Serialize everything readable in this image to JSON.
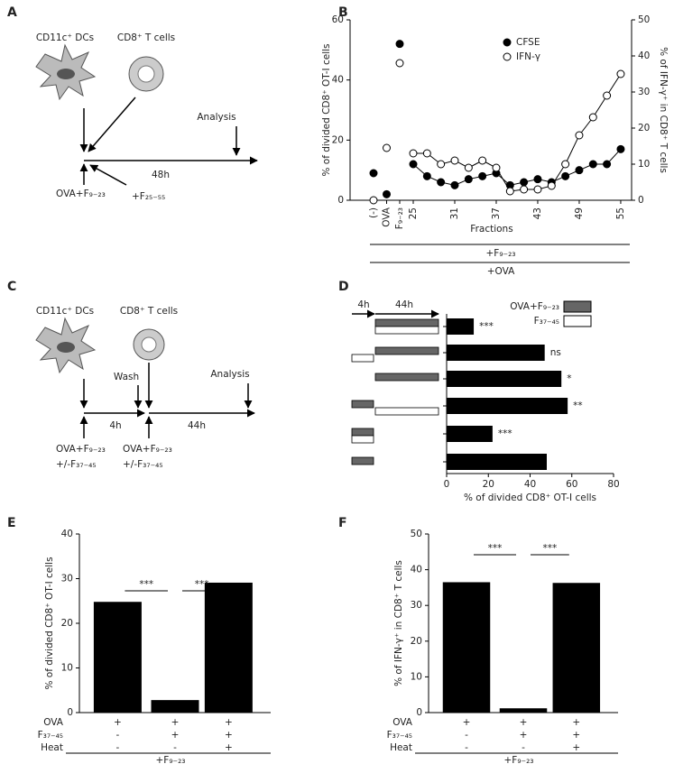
{
  "figure": {
    "panel_letters": [
      "A",
      "B",
      "C",
      "D",
      "E",
      "F"
    ]
  },
  "diagram_a": {
    "cells": [
      "CD11c⁺ DCs",
      "CD8⁺ T cells"
    ],
    "analysis": "Analysis",
    "duration": "48h",
    "treatments": [
      "OVA+F₉₋₂₃",
      "+F₂₅₋₅₅"
    ]
  },
  "diagram_c": {
    "cells": [
      "CD11c⁺ DCs",
      "CD8⁺ T cells"
    ],
    "wash": "Wash",
    "analysis": "Analysis",
    "durations": [
      "4h",
      "44h"
    ],
    "treatments": [
      [
        "OVA+F₉₋₂₃",
        "+/-F₃₇₋₄₅"
      ],
      [
        "OVA+F₉₋₂₃",
        "+/-F₃₇₋₄₅"
      ]
    ]
  },
  "chart_data": [
    {
      "type": "line",
      "ylabel": "% of divided CD8⁺ OT-I cells",
      "y2label": "% of IFN-γ⁺ in CD8⁺ T cells",
      "xlabel": "Fractions",
      "categories": [
        "(-)",
        "OVA",
        "F₉₋₂₃",
        "25",
        null,
        null,
        "31",
        null,
        null,
        "37",
        null,
        null,
        "43",
        null,
        null,
        "49",
        null,
        null,
        "55"
      ],
      "series": [
        {
          "name": "CFSE",
          "color": "#000000",
          "marker": "filled",
          "values": [
            9,
            2,
            52,
            12,
            8,
            6,
            5,
            7,
            8,
            9,
            5,
            6,
            7,
            6,
            8,
            10,
            12,
            12,
            17
          ]
        },
        {
          "name": "IFN-γ",
          "color": "#000000",
          "marker": "open",
          "axis": "y2",
          "values": [
            0,
            14.5,
            38,
            13,
            13,
            10,
            11,
            9,
            11,
            9,
            2.5,
            3,
            3,
            4,
            10,
            18,
            23,
            29,
            35
          ]
        }
      ],
      "ylim": [
        0,
        60
      ],
      "yticks": [
        0,
        20,
        40,
        60
      ],
      "y2lim": [
        0,
        50
      ],
      "y2ticks": [
        0,
        10,
        20,
        30,
        40,
        50
      ],
      "bracket_labels": [
        "+F₉₋₂₃",
        "+OVA"
      ]
    },
    {
      "type": "bar",
      "orientation": "horizontal",
      "categories": [
        null,
        null,
        null,
        null,
        null,
        null
      ],
      "values": [
        13,
        47,
        55,
        58,
        22,
        48
      ],
      "annotations": [
        "***",
        "ns",
        "*",
        "**",
        "***",
        null
      ],
      "color": "#000000",
      "xlim": [
        0,
        80
      ],
      "xticks": [
        0,
        20,
        40,
        60,
        80
      ],
      "xlabel": "% of divided CD8⁺ OT-I cells",
      "legend": [
        {
          "name": "OVA+F₉₋₂₃",
          "color": "#666666"
        },
        {
          "name": "F₃₇₋₄₅",
          "color": "#ffffff"
        }
      ],
      "time_labels": [
        "4h",
        "44h"
      ]
    },
    {
      "type": "bar",
      "ylabel": "% of divided CD8⁺ OT-I cells",
      "categories": [
        null,
        null,
        null
      ],
      "values": [
        24.8,
        2.8,
        29.1
      ],
      "color": "#000000",
      "ylim": [
        0,
        40
      ],
      "yticks": [
        0,
        10,
        20,
        30,
        40
      ],
      "significance_labels": [
        "***",
        "***"
      ],
      "conditions": {
        "rows": [
          "OVA",
          "F₃₇₋₄₅",
          "Heat"
        ],
        "cells": [
          [
            "+",
            "+",
            "+"
          ],
          [
            "-",
            "+",
            "+"
          ],
          [
            "-",
            "-",
            "+"
          ]
        ]
      },
      "group_label": "+F₉₋₂₃"
    },
    {
      "type": "bar",
      "ylabel": "% of IFN-γ⁺ in CD8⁺ T cells",
      "categories": [
        null,
        null,
        null
      ],
      "values": [
        36.5,
        1.2,
        36.3
      ],
      "color": "#000000",
      "ylim": [
        0,
        50
      ],
      "yticks": [
        0,
        10,
        20,
        30,
        40,
        50
      ],
      "significance_labels": [
        "***",
        "***"
      ],
      "conditions": {
        "rows": [
          "OVA",
          "F₃₇₋₄₅",
          "Heat"
        ],
        "cells": [
          [
            "+",
            "+",
            "+"
          ],
          [
            "-",
            "+",
            "+"
          ],
          [
            "-",
            "-",
            "+"
          ]
        ]
      },
      "group_label": "+F₉₋₂₃"
    }
  ]
}
